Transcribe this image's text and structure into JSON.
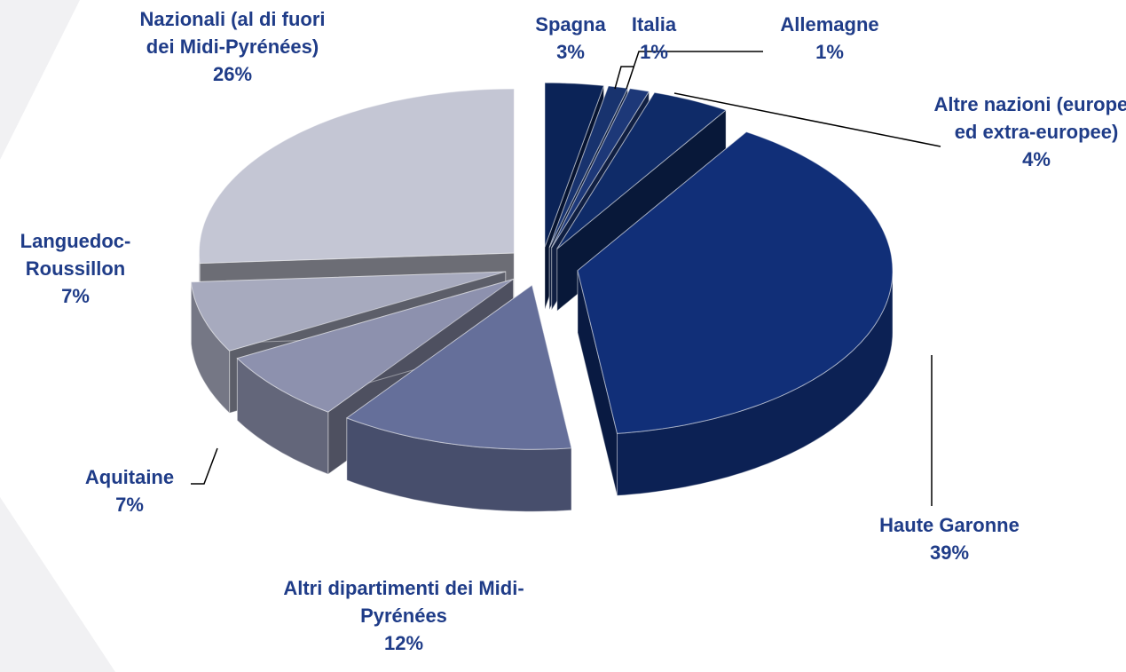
{
  "chart_data": {
    "type": "pie3d",
    "categories": [
      "Spagna",
      "Italia",
      "Allemagne",
      "Altre nazioni (europee ed extra-europee)",
      "Haute Garonne",
      "Altri dipartimenti dei Midi-Pyrénées",
      "Aquitaine",
      "Languedoc-Roussillon",
      "Nazionali (al di fuori dei Midi-Pyrénées)"
    ],
    "values": [
      3,
      1,
      1,
      4,
      39,
      12,
      7,
      7,
      26
    ],
    "value_labels": [
      "3%",
      "1%",
      "1%",
      "4%",
      "39%",
      "12%",
      "7%",
      "7%",
      "26%"
    ],
    "colors": [
      "#0b2357",
      "#18336e",
      "#1d3878",
      "#0f2b68",
      "#112f78",
      "#656f9a",
      "#8d91ae",
      "#a7aabe",
      "#c4c6d4"
    ]
  }
}
